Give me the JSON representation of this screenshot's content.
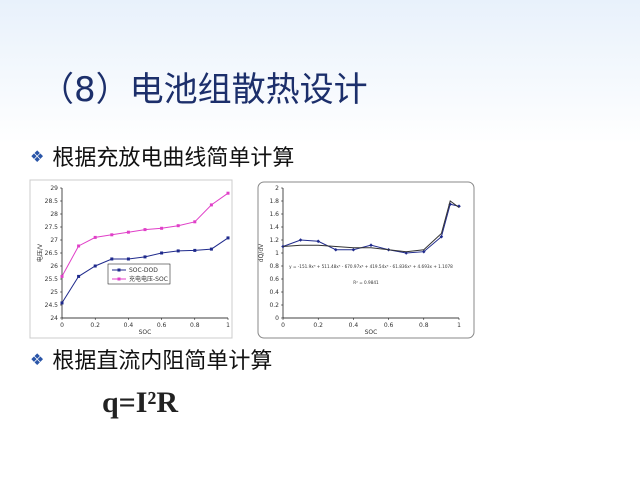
{
  "title": "（8）电池组散热设计",
  "bullets": [
    "根据充放电曲线简单计算",
    "根据直流内阻简单计算"
  ],
  "formula": "q=I²R",
  "charts": [
    {
      "type": "line",
      "x_label": "SOC",
      "y_label": "电压/V",
      "x": [
        0,
        0.1,
        0.2,
        0.3,
        0.4,
        0.5,
        0.6,
        0.7,
        0.8,
        0.9,
        1
      ],
      "xlim": [
        0,
        1
      ],
      "xticks": [
        0,
        0.2,
        0.4,
        0.6,
        0.8,
        1
      ],
      "ylim": [
        24,
        29
      ],
      "yticks": [
        24,
        24.5,
        25,
        25.5,
        26,
        26.5,
        27,
        27.5,
        28,
        28.5,
        29
      ],
      "series": [
        {
          "name": "SOC-DOD",
          "color": "#1f2a8c",
          "values": [
            24.58,
            25.6,
            26.0,
            26.27,
            26.27,
            26.35,
            26.5,
            26.58,
            26.6,
            26.65,
            27.08
          ]
        },
        {
          "name": "充电电压-SOC",
          "color": "#e040c8",
          "values": [
            25.6,
            26.77,
            27.1,
            27.2,
            27.3,
            27.4,
            27.45,
            27.55,
            27.7,
            28.35,
            28.8
          ]
        }
      ]
    },
    {
      "type": "line",
      "x_label": "SOC",
      "y_label": "dQ/dV",
      "x": [
        0,
        0.1,
        0.2,
        0.3,
        0.4,
        0.5,
        0.6,
        0.7,
        0.8,
        0.9,
        0.95,
        1
      ],
      "xlim": [
        0,
        1
      ],
      "xticks": [
        0,
        0.2,
        0.4,
        0.6,
        0.8,
        1
      ],
      "ylim": [
        0,
        2
      ],
      "yticks": [
        0,
        0.2,
        0.4,
        0.6,
        0.8,
        1,
        1.2,
        1.4,
        1.6,
        1.8,
        2
      ],
      "annotation": [
        "y = -151.9x⁶ + 511.48x⁵ - 670.97x⁴ + 419.54x³ - 61.836x² + 4.693x + 1.1078",
        "R² = 0.9841"
      ],
      "series": [
        {
          "color": "#1f2a8c",
          "values": [
            1.1,
            1.2,
            1.18,
            1.05,
            1.05,
            1.12,
            1.05,
            1.0,
            1.02,
            1.25,
            1.75,
            1.72
          ]
        },
        {
          "color": "#333333",
          "values": [
            1.1,
            1.12,
            1.12,
            1.1,
            1.08,
            1.08,
            1.05,
            1.02,
            1.05,
            1.3,
            1.8,
            1.7
          ]
        }
      ]
    }
  ]
}
